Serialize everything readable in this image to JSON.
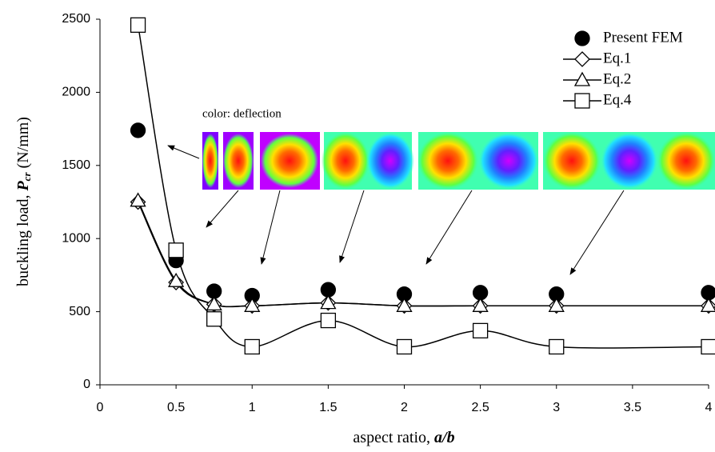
{
  "chart_data": {
    "type": "line",
    "x_label": [
      "aspect ratio, ",
      "a/b"
    ],
    "y_label": [
      "buckling load, ",
      "P",
      "cr",
      " (N/mm)"
    ],
    "annotation": "color: deflection",
    "x": [
      0.25,
      0.5,
      0.75,
      1,
      1.5,
      2,
      2.5,
      3,
      4
    ],
    "series": [
      {
        "name": "Present FEM",
        "color": "#000000",
        "marker": "circle",
        "line": false,
        "values": [
          1740,
          850,
          640,
          610,
          650,
          620,
          630,
          620,
          630
        ]
      },
      {
        "name": "Eq.1",
        "color": "#000000",
        "marker": "diamond",
        "line": true,
        "values": [
          1250,
          700,
          550,
          540,
          560,
          540,
          540,
          540,
          540
        ]
      },
      {
        "name": "Eq.2",
        "color": "#000000",
        "marker": "triangle",
        "line": true,
        "values": [
          1260,
          710,
          550,
          540,
          560,
          540,
          540,
          540,
          540
        ]
      },
      {
        "name": "Eq.4",
        "color": "#000000",
        "marker": "square",
        "line": true,
        "values": [
          2460,
          920,
          450,
          260,
          440,
          260,
          370,
          260,
          260
        ]
      }
    ],
    "xlim": [
      0,
      4
    ],
    "xticks": [
      0,
      0.5,
      1,
      1.5,
      2,
      2.5,
      3,
      3.5,
      4
    ],
    "ylim": [
      0,
      2500
    ],
    "yticks": [
      0,
      500,
      1000,
      1500,
      2000,
      2500
    ],
    "grid": false,
    "legend": "top-right"
  }
}
